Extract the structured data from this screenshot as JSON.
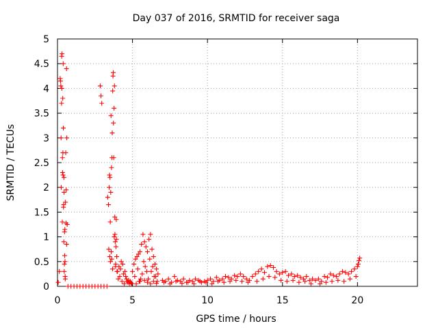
{
  "chart_data": {
    "type": "scatter",
    "title": "Day 037 of 2016, SRMTID for receiver saga",
    "xlabel": "GPS time / hours",
    "ylabel": "SRMTID / TECUs",
    "xlim": [
      0,
      24
    ],
    "ylim": [
      0,
      5
    ],
    "x_ticks": [
      0,
      5,
      10,
      15,
      20
    ],
    "x_tick_labels": [
      "0",
      "5",
      "10",
      "15",
      "20"
    ],
    "y_ticks": [
      0,
      0.5,
      1,
      1.5,
      2,
      2.5,
      3,
      3.5,
      4,
      4.5,
      5
    ],
    "y_tick_labels": [
      "0",
      "0.5",
      "1",
      "1.5",
      "2",
      "2.5",
      "3",
      "3.5",
      "4",
      "4.5",
      "5"
    ],
    "grid": true,
    "marker": "plus",
    "color": "#ff0000",
    "series": [
      {
        "name": "SRMTID",
        "x": [
          0.05,
          0.12,
          0.18,
          0.22,
          0.25,
          0.28,
          0.3,
          0.32,
          0.35,
          0.37,
          0.4,
          0.42,
          0.45,
          0.47,
          0.5,
          0.52,
          0.55,
          0.58,
          0.6,
          0.62,
          0.65,
          0.2,
          0.27,
          0.33,
          0.38,
          0.43,
          0.48,
          0.53,
          0.57,
          0.61,
          0.24,
          0.29,
          0.34,
          0.39,
          0.44,
          0.49,
          0.36,
          0.41,
          0.46,
          0.51,
          0.7,
          0.9,
          1.1,
          1.3,
          1.5,
          1.7,
          1.9,
          2.1,
          2.3,
          2.5,
          2.7,
          2.9,
          3.1,
          3.3,
          2.85,
          2.9,
          2.95,
          3.35,
          3.4,
          3.45,
          3.48,
          3.5,
          3.52,
          3.55,
          3.58,
          3.6,
          3.62,
          3.65,
          3.68,
          3.7,
          3.72,
          3.75,
          3.78,
          3.8,
          3.82,
          3.85,
          3.88,
          3.9,
          3.92,
          3.95,
          3.42,
          3.47,
          3.53,
          3.57,
          3.63,
          3.67,
          3.73,
          3.77,
          3.83,
          3.87,
          3.93,
          3.97,
          4.0,
          4.05,
          4.1,
          4.15,
          4.2,
          4.25,
          4.3,
          4.35,
          4.4,
          4.45,
          4.5,
          4.55,
          4.6,
          4.65,
          4.7,
          4.75,
          4.8,
          4.85,
          4.9,
          4.95,
          5.0,
          5.1,
          5.2,
          5.3,
          5.4,
          5.5,
          5.6,
          5.7,
          5.8,
          5.9,
          6.0,
          6.1,
          6.2,
          6.3,
          6.4,
          6.5,
          6.6,
          6.7,
          5.15,
          5.35,
          5.55,
          5.75,
          5.95,
          6.15,
          6.35,
          6.55,
          5.45,
          5.65,
          5.85,
          6.05,
          6.25,
          6.45,
          6.65,
          5.25,
          5.5,
          5.8,
          6.0,
          6.2,
          6.4,
          6.6,
          7.0,
          7.2,
          7.4,
          7.6,
          7.8,
          8.0,
          8.2,
          8.4,
          8.6,
          8.8,
          9.0,
          9.2,
          9.4,
          9.6,
          9.8,
          10.0,
          10.2,
          10.4,
          10.6,
          10.8,
          11.0,
          11.2,
          11.4,
          11.6,
          11.8,
          12.0,
          12.2,
          12.4,
          12.6,
          12.8,
          13.0,
          7.1,
          7.5,
          7.9,
          8.3,
          8.7,
          9.1,
          9.5,
          9.9,
          10.3,
          10.7,
          11.1,
          11.5,
          11.9,
          12.3,
          12.7,
          13.2,
          13.4,
          13.6,
          13.8,
          14.0,
          14.2,
          14.4,
          14.6,
          14.8,
          15.0,
          15.2,
          15.4,
          15.6,
          15.8,
          16.0,
          16.2,
          16.4,
          16.6,
          16.8,
          17.0,
          13.3,
          13.7,
          14.1,
          14.5,
          14.9,
          15.3,
          15.7,
          16.1,
          16.5,
          16.9,
          17.2,
          17.4,
          17.6,
          17.8,
          18.0,
          18.2,
          18.4,
          18.6,
          18.8,
          19.0,
          19.2,
          19.4,
          19.6,
          19.8,
          20.0,
          17.5,
          17.9,
          18.3,
          18.7,
          19.1,
          19.5,
          19.9,
          20.05,
          20.1,
          20.15
        ],
        "y": [
          0.08,
          0.3,
          4.2,
          4.05,
          2.0,
          4.65,
          4.7,
          1.3,
          3.8,
          2.25,
          1.6,
          0.9,
          0.3,
          1.1,
          0.5,
          0.15,
          2.7,
          1.95,
          4.4,
          3.0,
          1.25,
          4.15,
          3.7,
          2.6,
          4.5,
          2.2,
          0.62,
          1.7,
          1.28,
          0.85,
          3.0,
          4.0,
          2.3,
          3.2,
          1.9,
          1.15,
          2.7,
          1.65,
          0.45,
          0.2,
          0,
          0,
          0,
          0,
          0,
          0,
          0,
          0,
          0,
          0,
          0,
          0,
          0,
          0,
          4.05,
          3.85,
          3.7,
          1.8,
          1.65,
          2.0,
          0.6,
          2.2,
          1.3,
          1.9,
          0.7,
          2.4,
          0.55,
          3.1,
          3.95,
          4.25,
          4.32,
          2.6,
          1.0,
          4.05,
          1.4,
          0.9,
          0.45,
          0.8,
          1.35,
          0.6,
          0.75,
          2.25,
          0.5,
          3.45,
          2.6,
          0.35,
          3.3,
          3.6,
          1.05,
          0.4,
          0.95,
          0.3,
          0.3,
          0.15,
          0.4,
          0.2,
          0.35,
          0.5,
          0.1,
          0.45,
          0.25,
          0.05,
          0.3,
          0.2,
          0.15,
          0.1,
          0.08,
          0.12,
          0.05,
          0.1,
          0.07,
          0.05,
          0.3,
          0.45,
          0.55,
          0.6,
          0.65,
          0.7,
          0.85,
          1.05,
          0.9,
          0.8,
          0.7,
          0.95,
          1.05,
          0.75,
          0.6,
          0.45,
          0.35,
          0.25,
          0.2,
          0.35,
          0.15,
          0.5,
          0.3,
          0.55,
          0.4,
          0.2,
          0.1,
          0.25,
          0.4,
          0.15,
          0.3,
          0.2,
          0.1,
          0.05,
          0.1,
          0.12,
          0.08,
          0.05,
          0.1,
          0.06,
          0.12,
          0.1,
          0.15,
          0.08,
          0.2,
          0.12,
          0.1,
          0.15,
          0.08,
          0.12,
          0.1,
          0.15,
          0.12,
          0.08,
          0.1,
          0.12,
          0.15,
          0.1,
          0.18,
          0.12,
          0.15,
          0.2,
          0.18,
          0.15,
          0.22,
          0.2,
          0.25,
          0.2,
          0.15,
          0.12,
          0.2,
          0.08,
          0.05,
          0.1,
          0.06,
          0.08,
          0.05,
          0.1,
          0.08,
          0.05,
          0.1,
          0.08,
          0.1,
          0.12,
          0.1,
          0.08,
          0.25,
          0.3,
          0.35,
          0.28,
          0.4,
          0.42,
          0.38,
          0.3,
          0.25,
          0.28,
          0.3,
          0.22,
          0.25,
          0.2,
          0.22,
          0.18,
          0.15,
          0.2,
          0.12,
          0.15,
          0.1,
          0.15,
          0.2,
          0.18,
          0.12,
          0.1,
          0.12,
          0.08,
          0.1,
          0.05,
          0.12,
          0.15,
          0.1,
          0.2,
          0.18,
          0.25,
          0.22,
          0.2,
          0.25,
          0.3,
          0.28,
          0.25,
          0.3,
          0.35,
          0.4,
          0.05,
          0.08,
          0.1,
          0.12,
          0.1,
          0.15,
          0.2,
          0.45,
          0.52,
          0.57
        ]
      }
    ]
  }
}
